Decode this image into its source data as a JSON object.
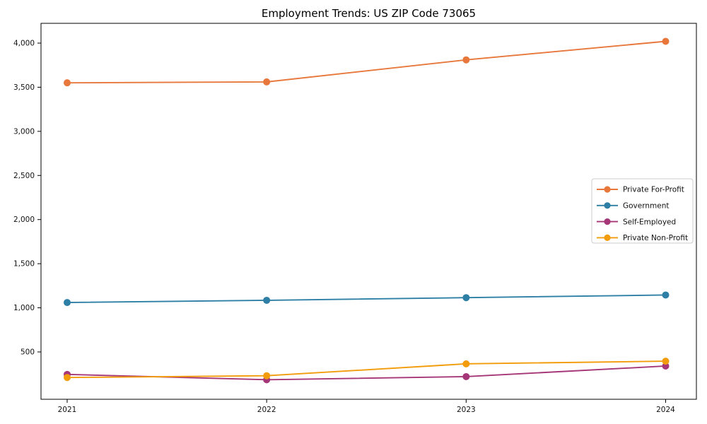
{
  "title": "Employment Trends: US ZIP Code 73065",
  "chart_data": {
    "type": "line",
    "title": "Employment Trends: US ZIP Code 73065",
    "x": [
      2021,
      2022,
      2023,
      2024
    ],
    "series": [
      {
        "name": "Private For-Profit",
        "color": "#e8773b",
        "values": [
          3550,
          3560,
          3810,
          4020
        ]
      },
      {
        "name": "Government",
        "color": "#2d7fa5",
        "values": [
          1060,
          1085,
          1115,
          1145
        ]
      },
      {
        "name": "Self-Employed",
        "color": "#a53677",
        "values": [
          245,
          185,
          220,
          340
        ]
      },
      {
        "name": "Private Non-Profit",
        "color": "#f39c0b",
        "values": [
          210,
          230,
          365,
          395
        ]
      }
    ],
    "xlabel": "",
    "ylabel": "",
    "xtick_labels": [
      "2021",
      "2022",
      "2023",
      "2024"
    ],
    "yticks": [
      500,
      1000,
      1500,
      2000,
      2500,
      3000,
      3500,
      4000
    ],
    "ytick_labels": [
      "500",
      "1,000",
      "1,500",
      "2,000",
      "2,500",
      "3,000",
      "3,500",
      "4,000"
    ],
    "ylim": [
      -40,
      4225
    ],
    "grid": false,
    "marker": "circle",
    "legend_position": "right",
    "legend_border_color": "#cccccc",
    "axis_color": "#000000",
    "text_color": "#111111"
  }
}
